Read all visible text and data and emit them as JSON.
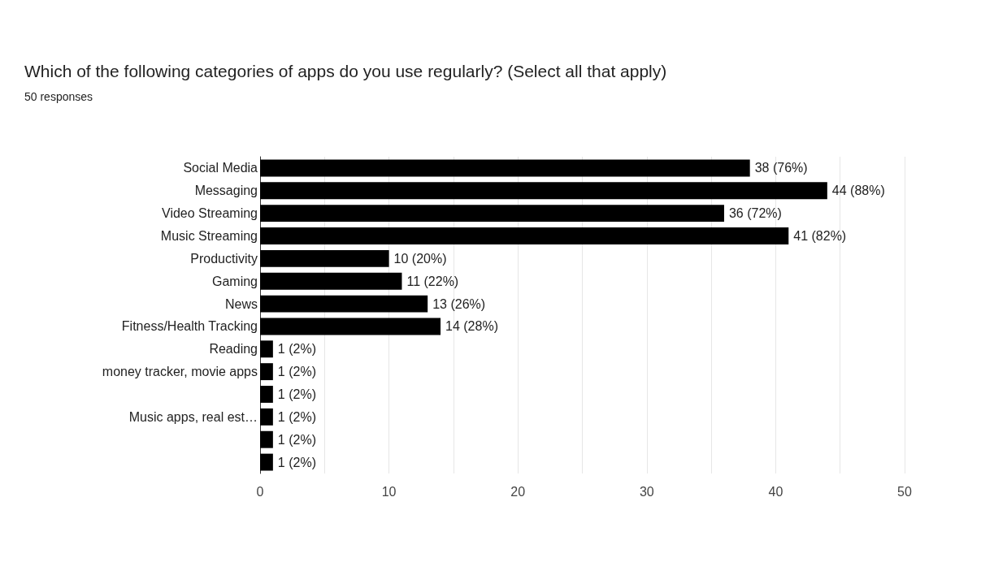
{
  "chart_data": {
    "type": "bar",
    "orientation": "horizontal",
    "title": "Which of the following categories of apps do you use regularly? (Select all that apply)",
    "subtitle": "50 responses",
    "categories": [
      "Social Media",
      "Messaging",
      "Video Streaming",
      "Music Streaming",
      "Productivity",
      "Gaming",
      "News",
      "Fitness/Health Tracking",
      "Reading",
      "money tracker, movie apps",
      null,
      "Music apps, real est…",
      null,
      null
    ],
    "values": [
      38,
      44,
      36,
      41,
      10,
      11,
      13,
      14,
      1,
      1,
      1,
      1,
      1,
      1
    ],
    "value_labels": [
      "38 (76%)",
      "44 (88%)",
      "36 (72%)",
      "41 (82%)",
      "10 (20%)",
      "11 (22%)",
      "13 (26%)",
      "14 (28%)",
      "1 (2%)",
      "1 (2%)",
      "1 (2%)",
      "1 (2%)",
      "1 (2%)",
      "1 (2%)"
    ],
    "color": "#000000",
    "xlim": [
      0,
      50
    ],
    "xticks": [
      0,
      {
        "value": 5,
        "label": null
      },
      10,
      {
        "value": 15,
        "label": null
      },
      20,
      {
        "value": 25,
        "label": null
      },
      30,
      {
        "value": 35,
        "label": null
      },
      40,
      {
        "value": 45,
        "label": null
      },
      50
    ],
    "grid": "x"
  }
}
